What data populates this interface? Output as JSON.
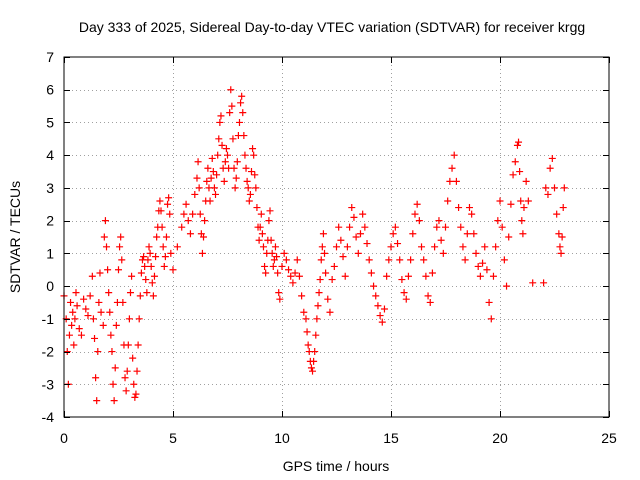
{
  "chart_data": {
    "type": "scatter",
    "title": "Day 333 of 2025, Sidereal Day-to-day VTEC variation (SDTVAR) for receiver krgg",
    "xlabel": "GPS time / hours",
    "ylabel": "SDTVAR / TECUs",
    "xlim": [
      0,
      25
    ],
    "ylim": [
      -4,
      7
    ],
    "xticks": [
      0,
      5,
      10,
      15,
      20,
      25
    ],
    "yticks": [
      -4,
      -3,
      -2,
      -1,
      0,
      1,
      2,
      3,
      4,
      5,
      6,
      7
    ],
    "grid": true,
    "marker": "+",
    "color": "#ff0000",
    "series": [
      {
        "name": "SDTVAR",
        "points": [
          [
            0.0,
            -0.3
          ],
          [
            0.1,
            -1.0
          ],
          [
            0.15,
            -2.0
          ],
          [
            0.2,
            -3.0
          ],
          [
            0.25,
            -1.5
          ],
          [
            0.3,
            -0.5
          ],
          [
            0.35,
            -1.2
          ],
          [
            0.4,
            -0.8
          ],
          [
            0.45,
            -1.8
          ],
          [
            0.5,
            -1.0
          ],
          [
            0.55,
            -0.2
          ],
          [
            0.6,
            -0.6
          ],
          [
            0.7,
            -1.3
          ],
          [
            0.8,
            -1.5
          ],
          [
            0.9,
            -0.4
          ],
          [
            1.0,
            -0.7
          ],
          [
            1.1,
            -0.9
          ],
          [
            1.2,
            -0.3
          ],
          [
            1.3,
            0.3
          ],
          [
            1.35,
            -1.0
          ],
          [
            1.4,
            -1.6
          ],
          [
            1.45,
            -2.8
          ],
          [
            1.5,
            -3.5
          ],
          [
            1.55,
            -2.0
          ],
          [
            1.6,
            -0.5
          ],
          [
            1.65,
            0.4
          ],
          [
            1.7,
            -0.8
          ],
          [
            1.8,
            -1.2
          ],
          [
            1.85,
            1.5
          ],
          [
            1.9,
            2.0
          ],
          [
            1.95,
            1.2
          ],
          [
            2.0,
            0.5
          ],
          [
            2.05,
            -0.2
          ],
          [
            2.1,
            -0.8
          ],
          [
            2.15,
            -1.5
          ],
          [
            2.2,
            -2.0
          ],
          [
            2.25,
            -3.0
          ],
          [
            2.3,
            -3.5
          ],
          [
            2.35,
            -2.5
          ],
          [
            2.4,
            -1.2
          ],
          [
            2.45,
            -0.5
          ],
          [
            2.5,
            0.5
          ],
          [
            2.55,
            1.2
          ],
          [
            2.6,
            1.5
          ],
          [
            2.65,
            0.8
          ],
          [
            2.7,
            -0.5
          ],
          [
            2.75,
            -1.8
          ],
          [
            2.8,
            -2.8
          ],
          [
            2.85,
            -3.2
          ],
          [
            2.9,
            -2.6
          ],
          [
            2.95,
            -1.8
          ],
          [
            3.0,
            -1.0
          ],
          [
            3.05,
            -0.2
          ],
          [
            3.1,
            0.3
          ],
          [
            3.15,
            -2.2
          ],
          [
            3.2,
            -3.0
          ],
          [
            3.25,
            -3.4
          ],
          [
            3.3,
            -3.3
          ],
          [
            3.35,
            -2.6
          ],
          [
            3.4,
            -1.8
          ],
          [
            3.45,
            -1.0
          ],
          [
            3.5,
            -0.3
          ],
          [
            3.55,
            0.4
          ],
          [
            3.6,
            0.8
          ],
          [
            3.65,
            0.9
          ],
          [
            3.7,
            0.6
          ],
          [
            3.75,
            0.2
          ],
          [
            3.8,
            -0.2
          ],
          [
            3.85,
            0.8
          ],
          [
            3.9,
            1.2
          ],
          [
            3.95,
            1.0
          ],
          [
            4.0,
            0.6
          ],
          [
            4.05,
            0.1
          ],
          [
            4.1,
            -0.3
          ],
          [
            4.15,
            0.3
          ],
          [
            4.2,
            0.9
          ],
          [
            4.25,
            1.5
          ],
          [
            4.3,
            1.8
          ],
          [
            4.35,
            2.3
          ],
          [
            4.4,
            2.6
          ],
          [
            4.45,
            2.3
          ],
          [
            4.5,
            1.8
          ],
          [
            4.55,
            1.2
          ],
          [
            4.6,
            0.6
          ],
          [
            4.65,
            0.9
          ],
          [
            4.7,
            1.5
          ],
          [
            4.75,
            2.5
          ],
          [
            4.8,
            2.7
          ],
          [
            4.85,
            2.2
          ],
          [
            4.9,
            1.0
          ],
          [
            5.0,
            0.5
          ],
          [
            5.2,
            1.2
          ],
          [
            5.4,
            1.8
          ],
          [
            5.5,
            2.2
          ],
          [
            5.6,
            2.5
          ],
          [
            5.7,
            2.0
          ],
          [
            5.8,
            1.6
          ],
          [
            5.9,
            2.2
          ],
          [
            6.0,
            2.8
          ],
          [
            6.1,
            3.3
          ],
          [
            6.15,
            3.8
          ],
          [
            6.2,
            3.0
          ],
          [
            6.25,
            2.2
          ],
          [
            6.3,
            1.6
          ],
          [
            6.35,
            1.0
          ],
          [
            6.4,
            1.5
          ],
          [
            6.45,
            2.0
          ],
          [
            6.5,
            2.6
          ],
          [
            6.55,
            3.2
          ],
          [
            6.6,
            3.6
          ],
          [
            6.65,
            3.0
          ],
          [
            6.7,
            2.6
          ],
          [
            6.75,
            3.3
          ],
          [
            6.8,
            3.9
          ],
          [
            6.85,
            3.5
          ],
          [
            6.9,
            3.0
          ],
          [
            6.95,
            2.8
          ],
          [
            7.0,
            3.4
          ],
          [
            7.05,
            4.0
          ],
          [
            7.1,
            4.5
          ],
          [
            7.15,
            5.0
          ],
          [
            7.2,
            5.2
          ],
          [
            7.25,
            4.3
          ],
          [
            7.3,
            3.6
          ],
          [
            7.35,
            3.2
          ],
          [
            7.4,
            3.8
          ],
          [
            7.45,
            4.2
          ],
          [
            7.5,
            4.0
          ],
          [
            7.55,
            3.6
          ],
          [
            7.6,
            5.3
          ],
          [
            7.65,
            6.0
          ],
          [
            7.7,
            5.5
          ],
          [
            7.75,
            4.5
          ],
          [
            7.8,
            3.6
          ],
          [
            7.85,
            3.0
          ],
          [
            7.9,
            3.3
          ],
          [
            7.95,
            3.8
          ],
          [
            8.0,
            4.6
          ],
          [
            8.05,
            5.0
          ],
          [
            8.1,
            5.6
          ],
          [
            8.15,
            5.8
          ],
          [
            8.2,
            5.3
          ],
          [
            8.25,
            4.6
          ],
          [
            8.3,
            4.0
          ],
          [
            8.35,
            3.6
          ],
          [
            8.4,
            3.2
          ],
          [
            8.45,
            3.0
          ],
          [
            8.5,
            2.6
          ],
          [
            8.55,
            2.8
          ],
          [
            8.6,
            3.5
          ],
          [
            8.65,
            4.2
          ],
          [
            8.7,
            4.0
          ],
          [
            8.75,
            3.4
          ],
          [
            8.8,
            3.0
          ],
          [
            8.85,
            2.4
          ],
          [
            8.9,
            1.8
          ],
          [
            8.95,
            1.4
          ],
          [
            9.0,
            1.8
          ],
          [
            9.05,
            2.2
          ],
          [
            9.1,
            1.6
          ],
          [
            9.15,
            1.2
          ],
          [
            9.2,
            0.6
          ],
          [
            9.25,
            0.4
          ],
          [
            9.3,
            1.0
          ],
          [
            9.35,
            1.4
          ],
          [
            9.4,
            2.0
          ],
          [
            9.45,
            2.3
          ],
          [
            9.5,
            1.4
          ],
          [
            9.55,
            1.0
          ],
          [
            9.6,
            0.6
          ],
          [
            9.65,
            0.8
          ],
          [
            9.7,
            1.2
          ],
          [
            9.75,
            0.9
          ],
          [
            9.8,
            0.4
          ],
          [
            9.85,
            -0.2
          ],
          [
            9.9,
            -0.4
          ],
          [
            10.0,
            0.6
          ],
          [
            10.1,
            1.0
          ],
          [
            10.2,
            0.8
          ],
          [
            10.3,
            0.5
          ],
          [
            10.4,
            0.3
          ],
          [
            10.5,
            0.1
          ],
          [
            10.6,
            0.4
          ],
          [
            10.7,
            0.8
          ],
          [
            10.8,
            0.3
          ],
          [
            10.9,
            -0.3
          ],
          [
            11.0,
            -0.8
          ],
          [
            11.1,
            -1.0
          ],
          [
            11.15,
            -1.4
          ],
          [
            11.2,
            -1.8
          ],
          [
            11.25,
            -2.0
          ],
          [
            11.3,
            -2.3
          ],
          [
            11.35,
            -2.5
          ],
          [
            11.4,
            -2.6
          ],
          [
            11.45,
            -2.3
          ],
          [
            11.5,
            -2.0
          ],
          [
            11.55,
            -1.5
          ],
          [
            11.6,
            -1.0
          ],
          [
            11.65,
            -0.6
          ],
          [
            11.7,
            -0.2
          ],
          [
            11.75,
            0.2
          ],
          [
            11.8,
            0.8
          ],
          [
            11.85,
            1.2
          ],
          [
            11.9,
            1.6
          ],
          [
            11.95,
            1.0
          ],
          [
            12.0,
            0.4
          ],
          [
            12.1,
            -0.4
          ],
          [
            12.2,
            -0.8
          ],
          [
            12.3,
            0.2
          ],
          [
            12.4,
            0.6
          ],
          [
            12.5,
            1.2
          ],
          [
            12.6,
            1.8
          ],
          [
            12.7,
            1.4
          ],
          [
            12.8,
            0.9
          ],
          [
            12.9,
            0.3
          ],
          [
            13.0,
            1.2
          ],
          [
            13.1,
            1.8
          ],
          [
            13.2,
            2.4
          ],
          [
            13.3,
            2.1
          ],
          [
            13.4,
            1.5
          ],
          [
            13.5,
            1.0
          ],
          [
            13.6,
            1.6
          ],
          [
            13.7,
            2.2
          ],
          [
            13.8,
            1.8
          ],
          [
            13.9,
            1.3
          ],
          [
            14.0,
            0.8
          ],
          [
            14.1,
            0.4
          ],
          [
            14.2,
            0.0
          ],
          [
            14.3,
            -0.3
          ],
          [
            14.4,
            -0.6
          ],
          [
            14.5,
            -0.9
          ],
          [
            14.6,
            -1.1
          ],
          [
            14.7,
            -0.7
          ],
          [
            14.8,
            0.3
          ],
          [
            14.9,
            0.8
          ],
          [
            15.0,
            1.2
          ],
          [
            15.1,
            1.6
          ],
          [
            15.2,
            1.8
          ],
          [
            15.3,
            1.3
          ],
          [
            15.4,
            0.8
          ],
          [
            15.5,
            0.2
          ],
          [
            15.6,
            -0.2
          ],
          [
            15.7,
            -0.4
          ],
          [
            15.8,
            0.3
          ],
          [
            15.9,
            0.8
          ],
          [
            16.0,
            1.6
          ],
          [
            16.1,
            2.2
          ],
          [
            16.2,
            2.5
          ],
          [
            16.3,
            2.0
          ],
          [
            16.4,
            1.2
          ],
          [
            16.5,
            0.8
          ],
          [
            16.6,
            0.3
          ],
          [
            16.7,
            -0.3
          ],
          [
            16.8,
            -0.5
          ],
          [
            16.9,
            0.4
          ],
          [
            17.0,
            1.2
          ],
          [
            17.1,
            1.8
          ],
          [
            17.2,
            2.0
          ],
          [
            17.3,
            1.4
          ],
          [
            17.4,
            1.0
          ],
          [
            17.5,
            1.8
          ],
          [
            17.6,
            2.6
          ],
          [
            17.7,
            3.2
          ],
          [
            17.8,
            3.6
          ],
          [
            17.9,
            4.0
          ],
          [
            18.0,
            3.2
          ],
          [
            18.1,
            2.4
          ],
          [
            18.2,
            1.8
          ],
          [
            18.3,
            1.2
          ],
          [
            18.4,
            0.8
          ],
          [
            18.5,
            1.6
          ],
          [
            18.6,
            2.4
          ],
          [
            18.7,
            2.2
          ],
          [
            18.8,
            1.6
          ],
          [
            18.9,
            1.0
          ],
          [
            19.0,
            0.6
          ],
          [
            19.1,
            0.3
          ],
          [
            19.2,
            0.7
          ],
          [
            19.3,
            1.2
          ],
          [
            19.4,
            0.5
          ],
          [
            19.5,
            -0.5
          ],
          [
            19.6,
            -1.0
          ],
          [
            19.7,
            0.3
          ],
          [
            19.8,
            1.2
          ],
          [
            19.9,
            2.0
          ],
          [
            20.0,
            2.6
          ],
          [
            20.1,
            1.8
          ],
          [
            20.2,
            0.8
          ],
          [
            20.3,
            0.0
          ],
          [
            20.4,
            1.5
          ],
          [
            20.5,
            2.5
          ],
          [
            20.6,
            3.4
          ],
          [
            20.7,
            3.8
          ],
          [
            20.8,
            4.3
          ],
          [
            20.85,
            4.4
          ],
          [
            20.9,
            3.5
          ],
          [
            20.95,
            2.6
          ],
          [
            21.0,
            2.0
          ],
          [
            21.05,
            1.6
          ],
          [
            21.1,
            2.4
          ],
          [
            21.2,
            3.2
          ],
          [
            21.3,
            2.6
          ],
          [
            21.5,
            0.1
          ],
          [
            22.0,
            0.1
          ],
          [
            22.1,
            3.0
          ],
          [
            22.2,
            2.8
          ],
          [
            22.3,
            3.6
          ],
          [
            22.4,
            3.9
          ],
          [
            22.5,
            3.0
          ],
          [
            22.6,
            2.2
          ],
          [
            22.7,
            1.6
          ],
          [
            22.75,
            1.2
          ],
          [
            22.8,
            1.0
          ],
          [
            22.85,
            1.5
          ],
          [
            22.9,
            2.4
          ],
          [
            22.95,
            3.0
          ]
        ]
      }
    ]
  }
}
